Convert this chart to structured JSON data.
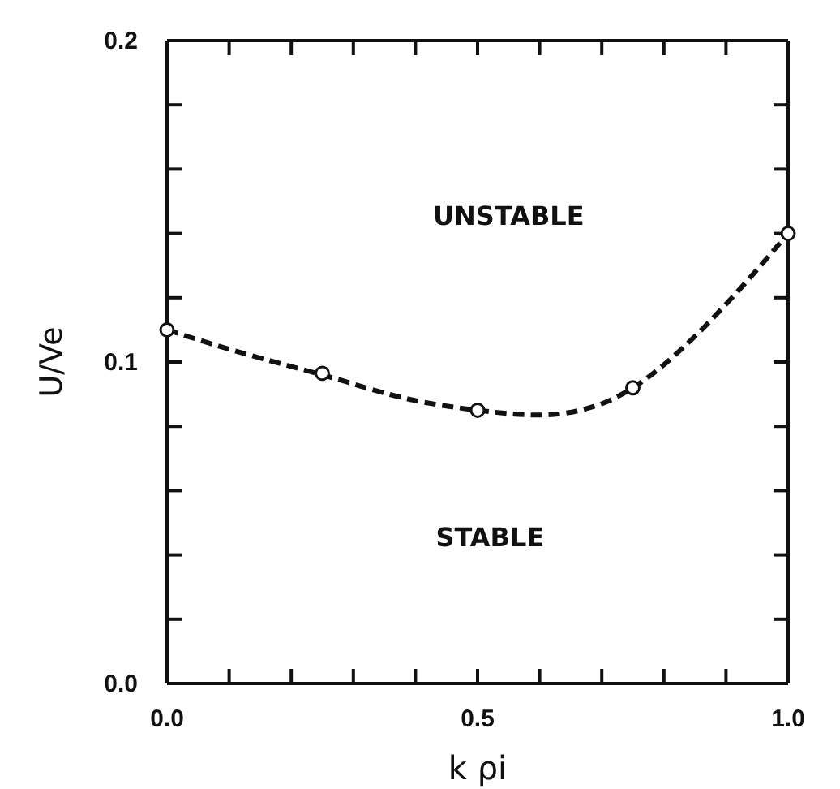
{
  "chart_data": {
    "type": "line",
    "xlabel": "k ρi",
    "ylabel": "U/Ve",
    "xlim": [
      0,
      1
    ],
    "ylim": [
      0,
      0.2
    ],
    "xticks": [
      {
        "value": 0,
        "label": "0.0"
      },
      {
        "value": 0.1,
        "label": null
      },
      {
        "value": 0.2,
        "label": null
      },
      {
        "value": 0.3,
        "label": null
      },
      {
        "value": 0.4,
        "label": null
      },
      {
        "value": 0.5,
        "label": "0.5"
      },
      {
        "value": 0.6,
        "label": null
      },
      {
        "value": 0.7,
        "label": null
      },
      {
        "value": 0.8,
        "label": null
      },
      {
        "value": 0.9,
        "label": null
      },
      {
        "value": 1,
        "label": "1.0"
      }
    ],
    "yticks": [
      {
        "value": 0,
        "label": "0.0"
      },
      {
        "value": 0.02,
        "label": null
      },
      {
        "value": 0.04,
        "label": null
      },
      {
        "value": 0.06,
        "label": null
      },
      {
        "value": 0.08,
        "label": null
      },
      {
        "value": 0.1,
        "label": "0.1"
      },
      {
        "value": 0.12,
        "label": null
      },
      {
        "value": 0.14,
        "label": null
      },
      {
        "value": 0.16,
        "label": null
      },
      {
        "value": 0.18,
        "label": null
      },
      {
        "value": 0.2,
        "label": "0.2"
      }
    ],
    "series": [
      {
        "color": "#111111",
        "line_style": "dashed",
        "marker": "none",
        "x": [
          0,
          0.1,
          0.25,
          0.4,
          0.5,
          0.6,
          0.7,
          0.75,
          0.85,
          0.9,
          1
        ],
        "values": [
          0.11,
          0.104,
          0.096,
          0.088,
          0.085,
          0.0835,
          0.087,
          0.092,
          0.108,
          0.118,
          0.14
        ]
      },
      {
        "type": "scatter",
        "color": "#111111",
        "marker": "circle",
        "x": [
          0,
          0.25,
          0.5,
          0.75,
          1
        ],
        "values": [
          0.11,
          0.0965,
          0.085,
          0.092,
          0.14
        ]
      }
    ],
    "annotations": [
      "UNSTABLE",
      "STABLE"
    ],
    "grid": false
  }
}
